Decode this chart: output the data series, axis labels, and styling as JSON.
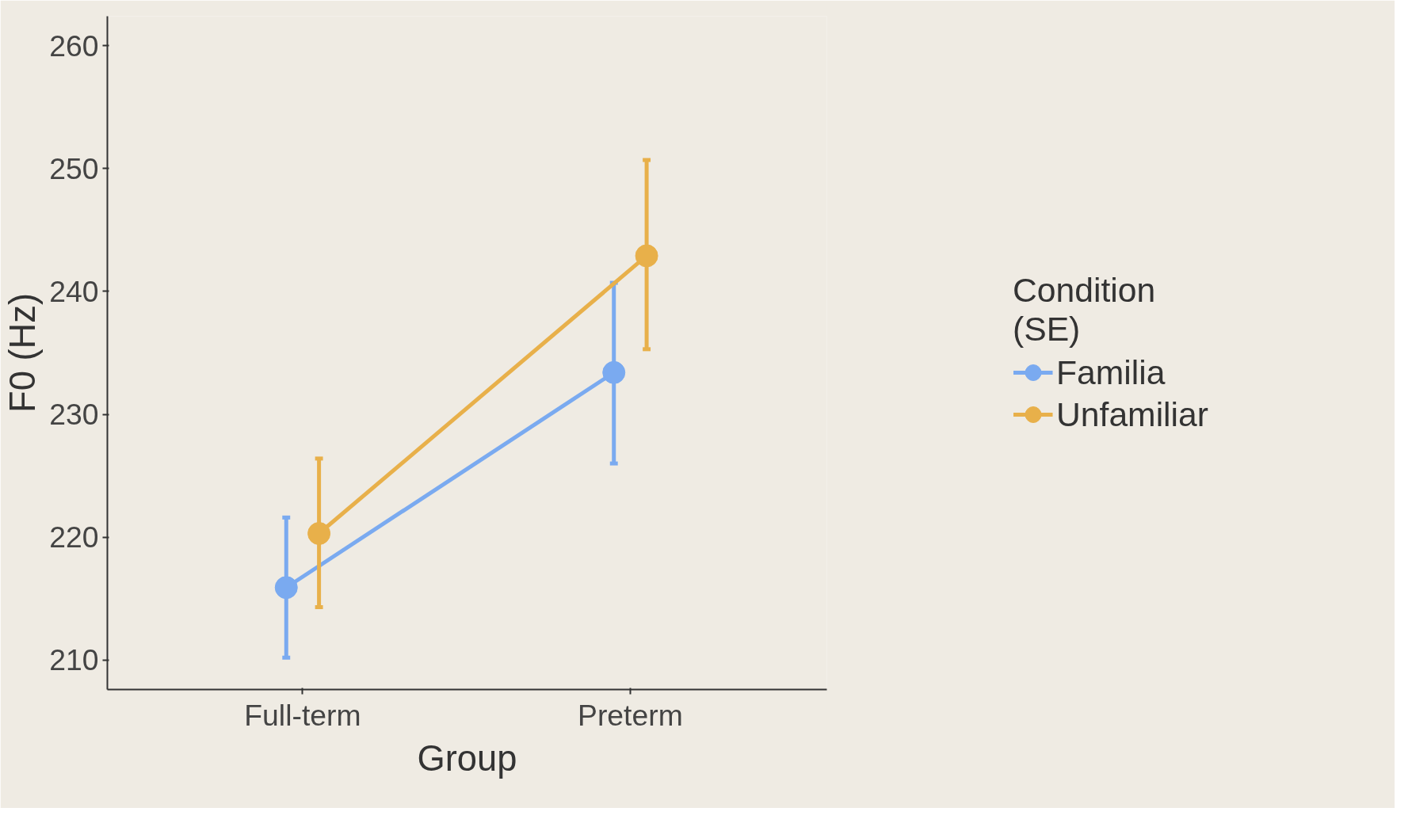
{
  "chart_data": {
    "type": "line",
    "xlabel": "Group",
    "ylabel": "F0 (Hz)",
    "legend_title": "Condition\n(SE)",
    "categories": [
      "Full-term",
      "Preterm"
    ],
    "series": [
      {
        "name": "Familia",
        "color": "#7aaaf0",
        "values": [
          215.9,
          233.4
        ],
        "errors": [
          [
            210.2,
            221.6
          ],
          [
            226.0,
            240.7
          ]
        ]
      },
      {
        "name": "Unfamiliar",
        "color": "#e8b04a",
        "values": [
          220.3,
          242.9
        ],
        "errors": [
          [
            214.3,
            226.4
          ],
          [
            235.3,
            250.7
          ]
        ]
      }
    ],
    "ylim": [
      207.6,
      262.4
    ],
    "yticks": [
      210,
      220,
      230,
      240,
      250,
      260
    ],
    "grid": false,
    "legend": "right",
    "marker": "circle",
    "line_style": "solid"
  }
}
